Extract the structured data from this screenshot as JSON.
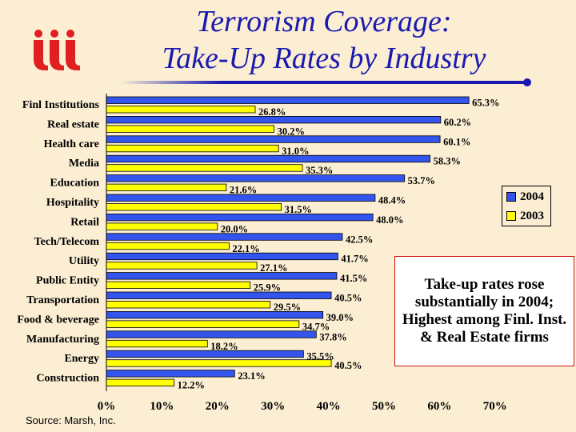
{
  "logo": {
    "text": "iii",
    "color": "#e02020"
  },
  "title": {
    "line1": "Terrorism Coverage:",
    "line2": "Take-Up Rates  by Industry"
  },
  "colors": {
    "s2004": "#3355ee",
    "s2003": "#ffff00",
    "title": "#1a1ab0",
    "rule": "#1a1ab0"
  },
  "note": "Take-up rates rose substantially in 2004; Highest among Finl. Inst. & Real Estate firms",
  "source": "Source: Marsh, Inc.",
  "chart_data": {
    "type": "bar",
    "orientation": "horizontal",
    "title": "Terrorism Coverage: Take-Up Rates  by Industry",
    "categories": [
      "Finl Institutions",
      "Real estate",
      "Health care",
      "Media",
      "Education",
      "Hospitality",
      "Retail",
      "Tech/Telecom",
      "Utility",
      "Public Entity",
      "Transportation",
      "Food & beverage",
      "Manufacturing",
      "Energy",
      "Construction"
    ],
    "series": [
      {
        "name": "2004",
        "values": [
          65.3,
          60.2,
          60.1,
          58.3,
          53.7,
          48.4,
          48.0,
          42.5,
          41.7,
          41.5,
          40.5,
          39.0,
          37.8,
          35.5,
          23.1
        ]
      },
      {
        "name": "2003",
        "values": [
          26.8,
          30.2,
          31.0,
          35.3,
          21.6,
          31.5,
          20.0,
          22.1,
          27.1,
          25.9,
          29.5,
          34.7,
          18.2,
          40.5,
          12.2
        ]
      }
    ],
    "xlim": [
      0,
      70
    ],
    "xticks": [
      "0%",
      "10%",
      "20%",
      "30%",
      "40%",
      "50%",
      "60%",
      "70%"
    ],
    "legend": [
      "2004",
      "2003"
    ],
    "legend_position": "right",
    "grid": false
  }
}
